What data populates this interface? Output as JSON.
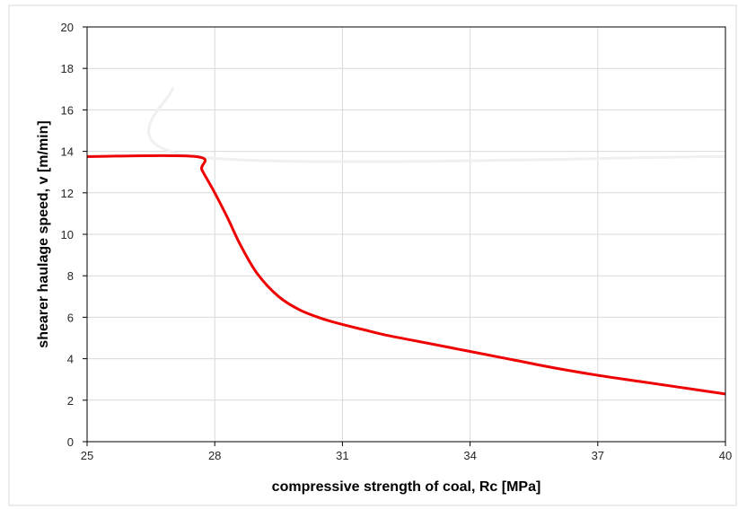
{
  "chart_data": {
    "type": "line",
    "title": "",
    "xlabel": "compressive strength of coal, Rc [MPa]",
    "ylabel": "shearer haulage speed, v [m/min]",
    "xlim": [
      25,
      40
    ],
    "ylim": [
      0,
      20
    ],
    "x_ticks": [
      "25",
      "28",
      "31",
      "34",
      "37",
      "40"
    ],
    "y_ticks": [
      "0",
      "2",
      "4",
      "6",
      "8",
      "10",
      "12",
      "14",
      "16",
      "18",
      "20"
    ],
    "grid": true,
    "legend": "none",
    "series": [
      {
        "color": "#f0f0f0",
        "x": [
          27,
          27.55,
          40
        ],
        "y": [
          17.1,
          13.75,
          13.75
        ]
      },
      {
        "color": "#ee0000",
        "x": [
          25,
          27.55,
          27.7,
          28,
          28.3,
          28.6,
          29,
          29.5,
          30,
          30.5,
          31,
          31.5,
          32,
          33,
          34,
          35,
          36,
          37,
          38,
          39,
          40
        ],
        "y": [
          13.75,
          13.75,
          13.1,
          12.0,
          10.8,
          9.5,
          8.1,
          7.0,
          6.35,
          5.95,
          5.65,
          5.4,
          5.15,
          4.75,
          4.35,
          3.95,
          3.55,
          3.2,
          2.9,
          2.6,
          2.3
        ]
      }
    ]
  }
}
